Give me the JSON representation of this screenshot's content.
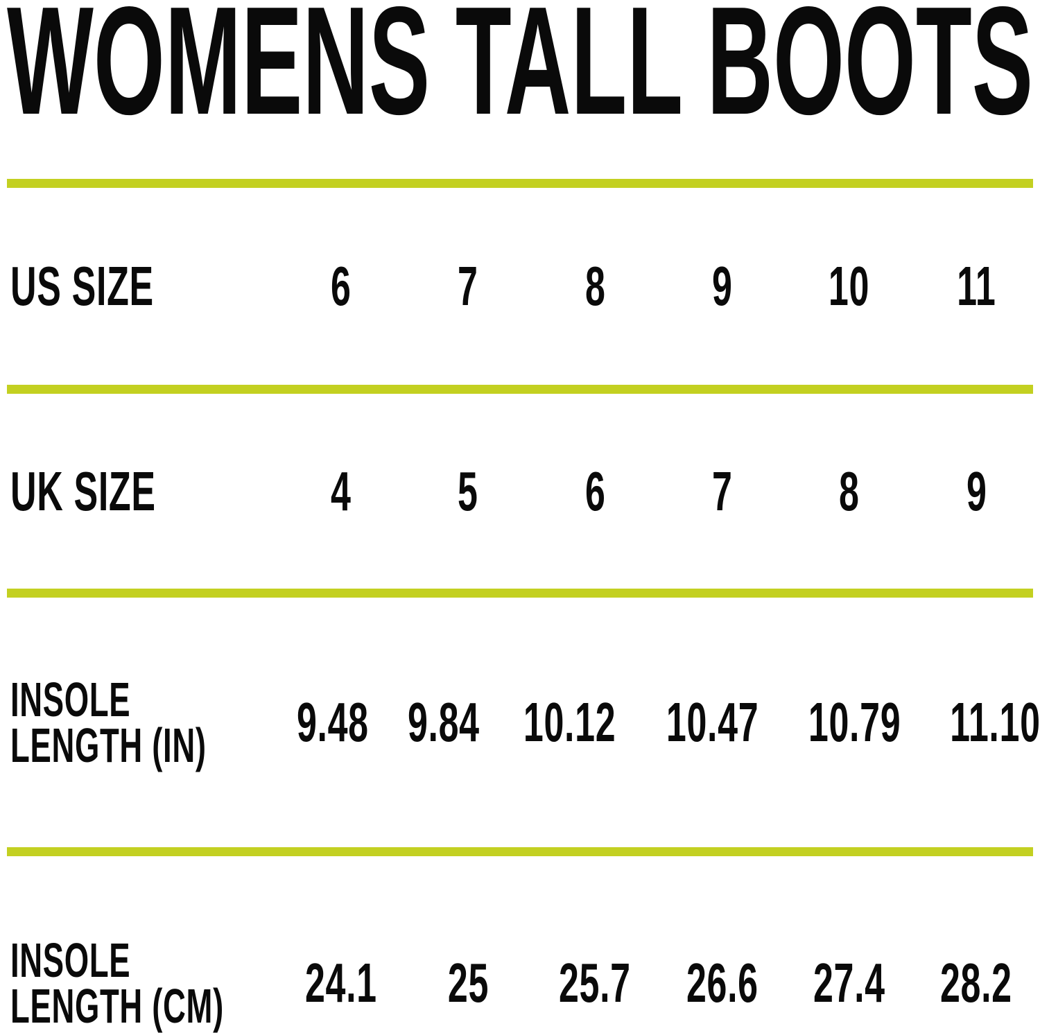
{
  "title": "WOMENS TALL BOOTS",
  "accent_color": "#c3d021",
  "text_color": "#0a0a0a",
  "rows": [
    {
      "id": "us-size",
      "label": "US SIZE",
      "values": [
        "6",
        "7",
        "8",
        "9",
        "10",
        "11"
      ]
    },
    {
      "id": "uk-size",
      "label": "UK SIZE",
      "values": [
        "4",
        "5",
        "6",
        "7",
        "8",
        "9"
      ]
    },
    {
      "id": "insole-length-in",
      "label": "INSOLE LENGTH (IN)",
      "values": [
        "9.48",
        "9.84",
        "10.12",
        "10.47",
        "10.79",
        "11.10"
      ]
    },
    {
      "id": "insole-length-cm",
      "label": "INSOLE LENGTH (CM)",
      "values": [
        "24.1",
        "25",
        "25.7",
        "26.6",
        "27.4",
        "28.2"
      ]
    }
  ],
  "chart_data": {
    "type": "table",
    "title": "WOMENS TALL BOOTS",
    "row_headers": [
      "US SIZE",
      "UK SIZE",
      "INSOLE LENGTH (IN)",
      "INSOLE LENGTH (CM)"
    ],
    "rows": [
      [
        "6",
        "7",
        "8",
        "9",
        "10",
        "11"
      ],
      [
        "4",
        "5",
        "6",
        "7",
        "8",
        "9"
      ],
      [
        9.48,
        9.84,
        10.12,
        10.47,
        10.79,
        11.1
      ],
      [
        24.1,
        25,
        25.7,
        26.6,
        27.4,
        28.2
      ]
    ],
    "notes": "Size conversion chart; lime horizontal rules separate title and each row",
    "accent_color": "#c3d021"
  }
}
